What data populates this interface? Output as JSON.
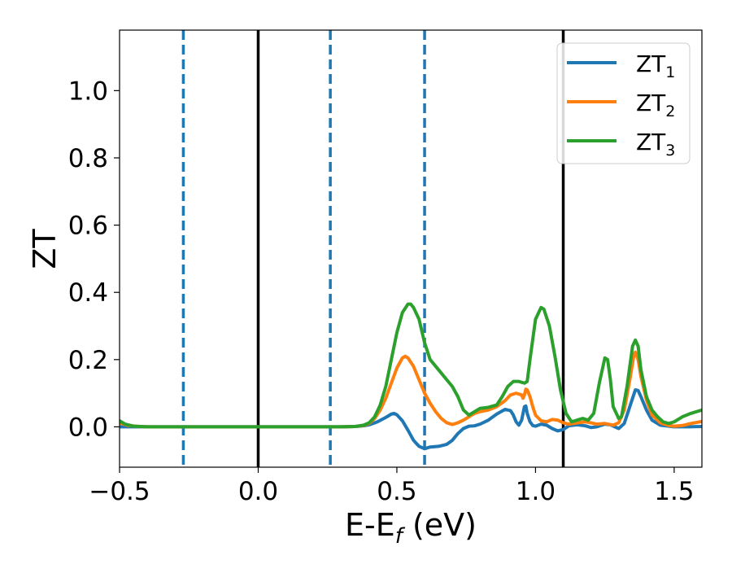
{
  "chart_data": {
    "type": "line",
    "title": "",
    "xlabel_main": "E-E",
    "xlabel_sub": "f",
    "xlabel_tail": " (eV)",
    "ylabel": "ZT",
    "xlim": [
      -0.5,
      1.6
    ],
    "ylim": [
      -0.12,
      1.18
    ],
    "xticks": [
      -0.5,
      0.0,
      0.5,
      1.0,
      1.5
    ],
    "xtick_labels": [
      "−0.5",
      "0.0",
      "0.5",
      "1.0",
      "1.5"
    ],
    "yticks": [
      0.0,
      0.2,
      0.4,
      0.6,
      0.8,
      1.0
    ],
    "ytick_labels": [
      "0.0",
      "0.2",
      "0.4",
      "0.6",
      "0.8",
      "1.0"
    ],
    "grid": false,
    "legend_position": "top-right",
    "vlines_solid": [
      0.0,
      1.1
    ],
    "vlines_dashed": [
      -0.27,
      0.26,
      0.6
    ],
    "vline_solid_color": "#000000",
    "vline_dashed_color": "#1f77b4",
    "series": [
      {
        "name": "ZT",
        "subscript": "1",
        "color": "#1f77b4",
        "points": [
          [
            -0.5,
            0.0
          ],
          [
            -0.3,
            0.0
          ],
          [
            0.0,
            0.0
          ],
          [
            0.25,
            0.0
          ],
          [
            0.3,
            0.0
          ],
          [
            0.35,
            0.001
          ],
          [
            0.38,
            0.003
          ],
          [
            0.4,
            0.006
          ],
          [
            0.43,
            0.015
          ],
          [
            0.46,
            0.028
          ],
          [
            0.48,
            0.038
          ],
          [
            0.49,
            0.04
          ],
          [
            0.5,
            0.036
          ],
          [
            0.52,
            0.018
          ],
          [
            0.54,
            -0.01
          ],
          [
            0.56,
            -0.04
          ],
          [
            0.58,
            -0.058
          ],
          [
            0.6,
            -0.065
          ],
          [
            0.62,
            -0.06
          ],
          [
            0.65,
            -0.058
          ],
          [
            0.68,
            -0.052
          ],
          [
            0.7,
            -0.04
          ],
          [
            0.72,
            -0.02
          ],
          [
            0.74,
            -0.005
          ],
          [
            0.76,
            0.002
          ],
          [
            0.78,
            0.003
          ],
          [
            0.8,
            0.008
          ],
          [
            0.83,
            0.02
          ],
          [
            0.86,
            0.038
          ],
          [
            0.89,
            0.052
          ],
          [
            0.91,
            0.048
          ],
          [
            0.92,
            0.035
          ],
          [
            0.93,
            0.015
          ],
          [
            0.94,
            0.005
          ],
          [
            0.95,
            0.02
          ],
          [
            0.96,
            0.06
          ],
          [
            0.965,
            0.062
          ],
          [
            0.97,
            0.04
          ],
          [
            0.98,
            0.015
          ],
          [
            0.99,
            0.004
          ],
          [
            1.0,
            0.002
          ],
          [
            1.02,
            0.008
          ],
          [
            1.04,
            0.005
          ],
          [
            1.06,
            -0.005
          ],
          [
            1.08,
            -0.012
          ],
          [
            1.1,
            -0.008
          ],
          [
            1.12,
            0.003
          ],
          [
            1.15,
            0.006
          ],
          [
            1.18,
            0.003
          ],
          [
            1.2,
            -0.002
          ],
          [
            1.22,
            0.0
          ],
          [
            1.25,
            0.008
          ],
          [
            1.27,
            0.006
          ],
          [
            1.3,
            -0.005
          ],
          [
            1.32,
            0.01
          ],
          [
            1.34,
            0.06
          ],
          [
            1.36,
            0.11
          ],
          [
            1.37,
            0.108
          ],
          [
            1.38,
            0.09
          ],
          [
            1.4,
            0.05
          ],
          [
            1.42,
            0.02
          ],
          [
            1.45,
            0.005
          ],
          [
            1.5,
            0.0
          ],
          [
            1.55,
            0.0
          ],
          [
            1.6,
            0.001
          ]
        ]
      },
      {
        "name": "ZT",
        "subscript": "2",
        "color": "#ff7f0e",
        "points": [
          [
            -0.5,
            0.012
          ],
          [
            -0.47,
            0.004
          ],
          [
            -0.43,
            0.001
          ],
          [
            -0.4,
            0.0
          ],
          [
            0.0,
            0.0
          ],
          [
            0.3,
            0.0
          ],
          [
            0.35,
            0.001
          ],
          [
            0.38,
            0.004
          ],
          [
            0.4,
            0.01
          ],
          [
            0.42,
            0.025
          ],
          [
            0.44,
            0.05
          ],
          [
            0.46,
            0.085
          ],
          [
            0.48,
            0.13
          ],
          [
            0.5,
            0.175
          ],
          [
            0.52,
            0.205
          ],
          [
            0.53,
            0.21
          ],
          [
            0.54,
            0.205
          ],
          [
            0.56,
            0.18
          ],
          [
            0.58,
            0.14
          ],
          [
            0.6,
            0.1
          ],
          [
            0.62,
            0.07
          ],
          [
            0.64,
            0.045
          ],
          [
            0.66,
            0.025
          ],
          [
            0.68,
            0.012
          ],
          [
            0.7,
            0.007
          ],
          [
            0.72,
            0.012
          ],
          [
            0.74,
            0.02
          ],
          [
            0.76,
            0.03
          ],
          [
            0.78,
            0.04
          ],
          [
            0.8,
            0.045
          ],
          [
            0.83,
            0.05
          ],
          [
            0.86,
            0.06
          ],
          [
            0.89,
            0.078
          ],
          [
            0.91,
            0.095
          ],
          [
            0.93,
            0.1
          ],
          [
            0.95,
            0.095
          ],
          [
            0.955,
            0.085
          ],
          [
            0.96,
            0.095
          ],
          [
            0.965,
            0.112
          ],
          [
            0.97,
            0.11
          ],
          [
            0.98,
            0.09
          ],
          [
            0.99,
            0.06
          ],
          [
            1.0,
            0.035
          ],
          [
            1.02,
            0.018
          ],
          [
            1.04,
            0.015
          ],
          [
            1.06,
            0.022
          ],
          [
            1.08,
            0.02
          ],
          [
            1.1,
            0.012
          ],
          [
            1.12,
            0.008
          ],
          [
            1.15,
            0.012
          ],
          [
            1.18,
            0.015
          ],
          [
            1.2,
            0.012
          ],
          [
            1.22,
            0.008
          ],
          [
            1.25,
            0.01
          ],
          [
            1.28,
            0.005
          ],
          [
            1.3,
            0.012
          ],
          [
            1.32,
            0.05
          ],
          [
            1.34,
            0.14
          ],
          [
            1.355,
            0.215
          ],
          [
            1.36,
            0.222
          ],
          [
            1.37,
            0.2
          ],
          [
            1.38,
            0.15
          ],
          [
            1.4,
            0.08
          ],
          [
            1.42,
            0.035
          ],
          [
            1.45,
            0.012
          ],
          [
            1.48,
            0.004
          ],
          [
            1.5,
            0.002
          ],
          [
            1.53,
            0.004
          ],
          [
            1.56,
            0.01
          ],
          [
            1.6,
            0.016
          ]
        ]
      },
      {
        "name": "ZT",
        "subscript": "3",
        "color": "#2ca02c",
        "points": [
          [
            -0.5,
            0.018
          ],
          [
            -0.48,
            0.008
          ],
          [
            -0.45,
            0.002
          ],
          [
            -0.4,
            0.0
          ],
          [
            0.0,
            0.0
          ],
          [
            0.3,
            0.0
          ],
          [
            0.35,
            0.001
          ],
          [
            0.38,
            0.005
          ],
          [
            0.4,
            0.012
          ],
          [
            0.42,
            0.03
          ],
          [
            0.44,
            0.065
          ],
          [
            0.46,
            0.12
          ],
          [
            0.48,
            0.2
          ],
          [
            0.5,
            0.28
          ],
          [
            0.52,
            0.34
          ],
          [
            0.54,
            0.365
          ],
          [
            0.55,
            0.365
          ],
          [
            0.56,
            0.355
          ],
          [
            0.58,
            0.32
          ],
          [
            0.6,
            0.25
          ],
          [
            0.62,
            0.2
          ],
          [
            0.65,
            0.17
          ],
          [
            0.68,
            0.14
          ],
          [
            0.7,
            0.12
          ],
          [
            0.72,
            0.09
          ],
          [
            0.74,
            0.05
          ],
          [
            0.76,
            0.035
          ],
          [
            0.78,
            0.045
          ],
          [
            0.8,
            0.055
          ],
          [
            0.83,
            0.058
          ],
          [
            0.86,
            0.065
          ],
          [
            0.88,
            0.09
          ],
          [
            0.9,
            0.12
          ],
          [
            0.92,
            0.135
          ],
          [
            0.94,
            0.135
          ],
          [
            0.96,
            0.13
          ],
          [
            0.97,
            0.135
          ],
          [
            0.98,
            0.2
          ],
          [
            1.0,
            0.32
          ],
          [
            1.02,
            0.355
          ],
          [
            1.03,
            0.35
          ],
          [
            1.05,
            0.3
          ],
          [
            1.07,
            0.21
          ],
          [
            1.09,
            0.11
          ],
          [
            1.11,
            0.04
          ],
          [
            1.13,
            0.015
          ],
          [
            1.15,
            0.02
          ],
          [
            1.17,
            0.025
          ],
          [
            1.19,
            0.02
          ],
          [
            1.21,
            0.04
          ],
          [
            1.23,
            0.13
          ],
          [
            1.25,
            0.205
          ],
          [
            1.26,
            0.2
          ],
          [
            1.27,
            0.14
          ],
          [
            1.28,
            0.06
          ],
          [
            1.3,
            0.025
          ],
          [
            1.31,
            0.03
          ],
          [
            1.33,
            0.12
          ],
          [
            1.35,
            0.24
          ],
          [
            1.36,
            0.258
          ],
          [
            1.37,
            0.24
          ],
          [
            1.38,
            0.17
          ],
          [
            1.4,
            0.09
          ],
          [
            1.42,
            0.05
          ],
          [
            1.44,
            0.03
          ],
          [
            1.46,
            0.015
          ],
          [
            1.48,
            0.01
          ],
          [
            1.5,
            0.015
          ],
          [
            1.53,
            0.03
          ],
          [
            1.56,
            0.04
          ],
          [
            1.6,
            0.05
          ]
        ]
      }
    ]
  }
}
